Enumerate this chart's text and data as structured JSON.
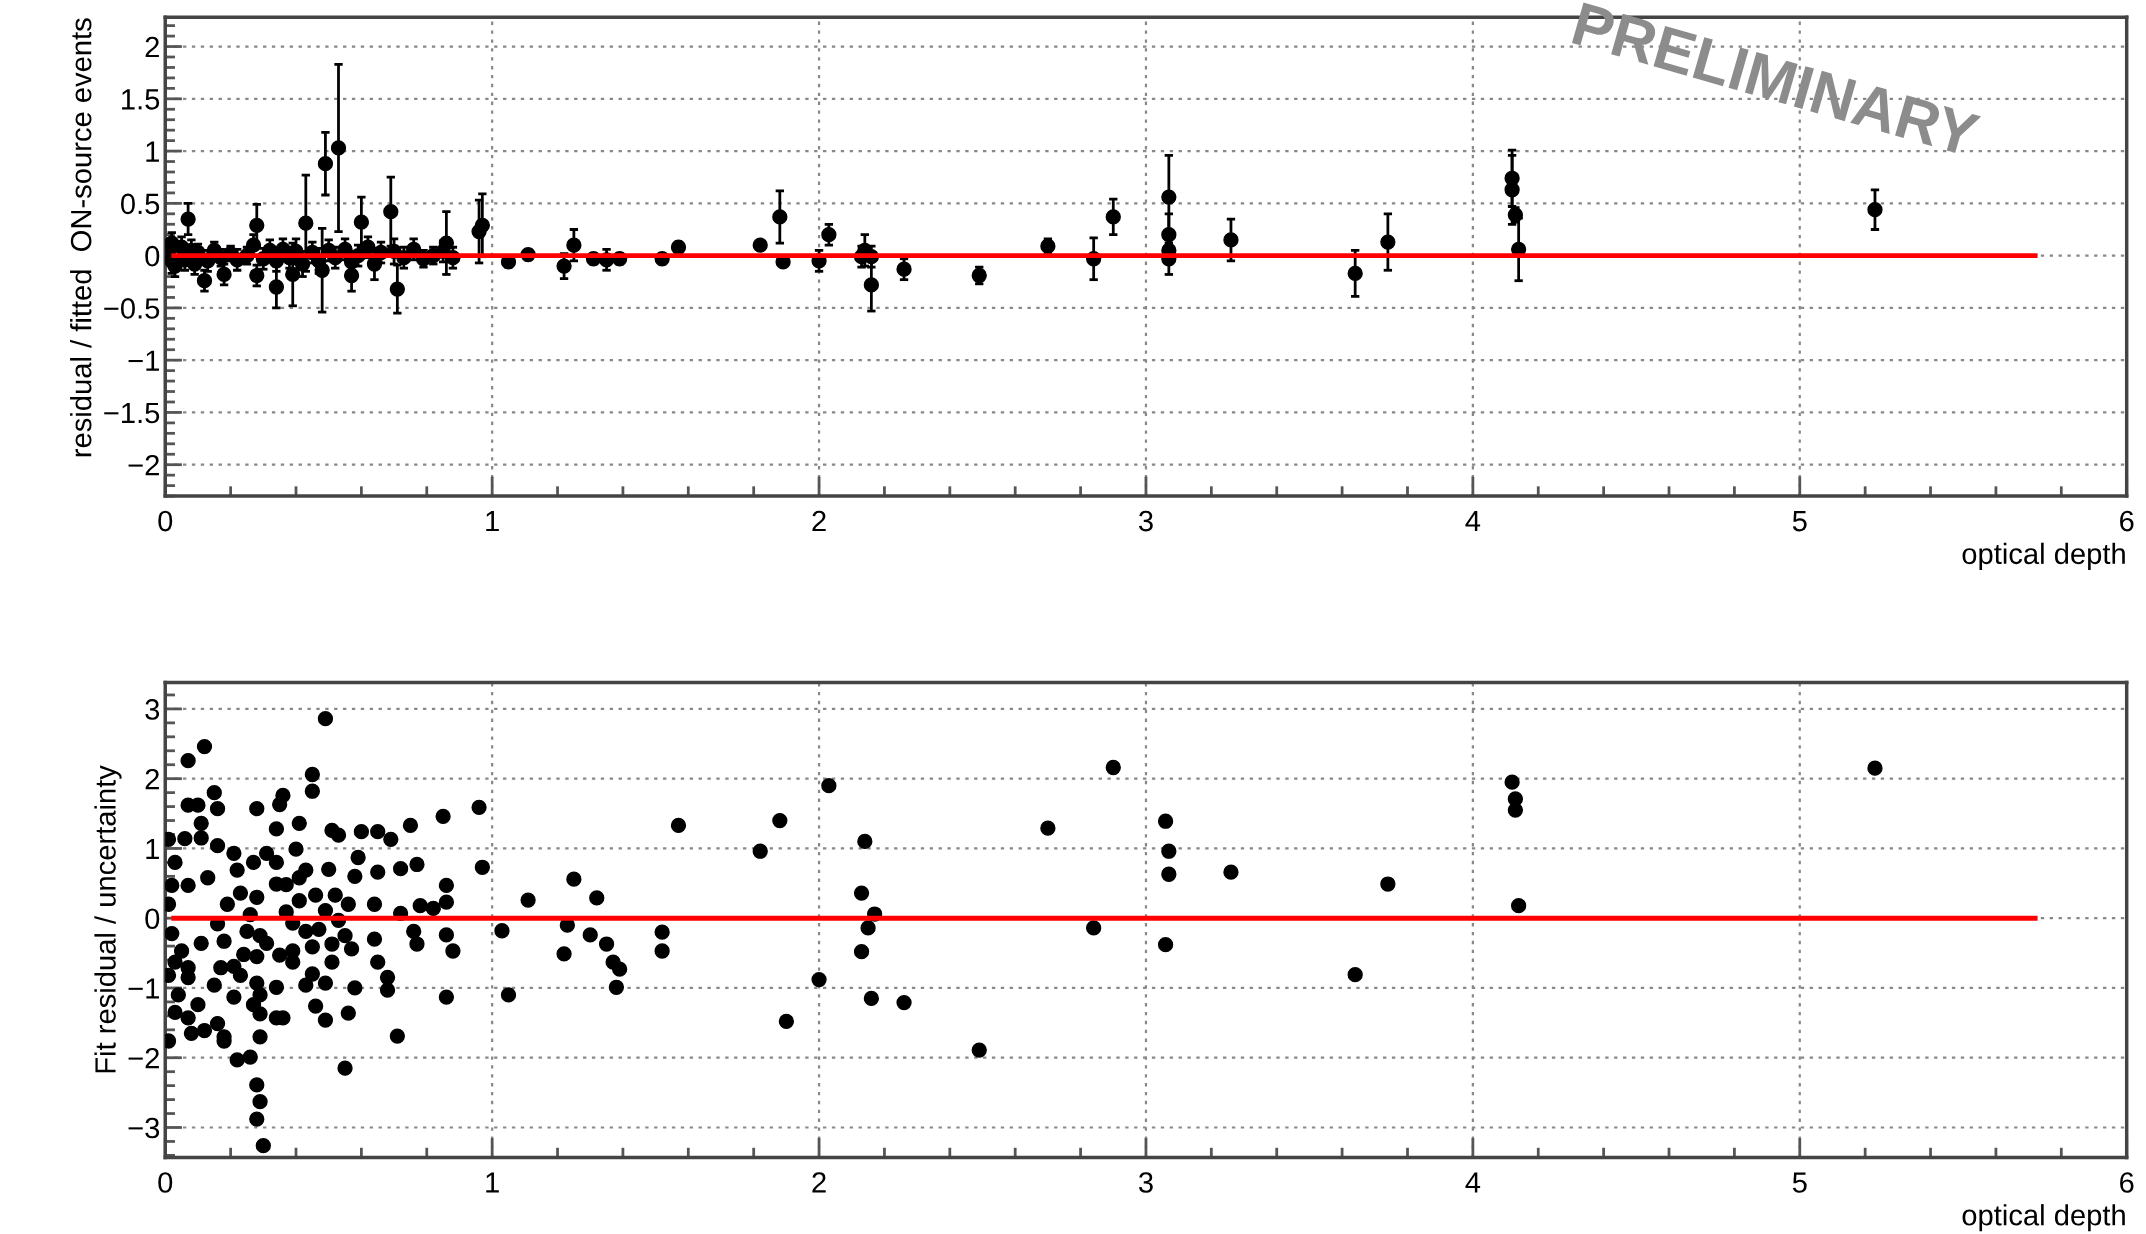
{
  "chart_data": [
    {
      "type": "scatter",
      "xlabel": "optical depth",
      "ylabel": "residual / fitted  ON-source events",
      "xlim": [
        0,
        6
      ],
      "ylim": [
        -2.3,
        2.28
      ],
      "xticks": [
        0,
        1,
        2,
        3,
        4,
        5,
        6
      ],
      "yticks": [
        {
          "value": -2,
          "label": "−2"
        },
        {
          "value": -1.5,
          "label": "−1.5"
        },
        {
          "value": -1,
          "label": "−1"
        },
        {
          "value": -0.5,
          "label": "−0.5"
        },
        0,
        0.5,
        1,
        1.5,
        2
      ],
      "grid": true,
      "annotations": [
        "PRELIMINARY"
      ],
      "series": [
        {
          "marker": "circle",
          "color": "#000000",
          "x": [
            0.01,
            0.02,
            0.02,
            0.03,
            0.05,
            0.06,
            0.08,
            0.09,
            0.1,
            0.13,
            0.15,
            0.17,
            0.2,
            0.22,
            0.25,
            0.27,
            0.3,
            0.32,
            0.34,
            0.36,
            0.38,
            0.4,
            0.42,
            0.45,
            0.47,
            0.5,
            0.52,
            0.55,
            0.57,
            0.59,
            0.62,
            0.64,
            0.66,
            0.7,
            0.73,
            0.76,
            0.79,
            0.82,
            0.85,
            0.88,
            0.07,
            0.28,
            0.43,
            0.49,
            0.53,
            0.6,
            0.69,
            0.71,
            0.34,
            0.39,
            0.48,
            0.12,
            0.18,
            0.28,
            0.57,
            0.96,
            0.97,
            0.86,
            1.05,
            1.11,
            1.25,
            1.22,
            1.31,
            1.35,
            1.39,
            1.52,
            1.57,
            1.82,
            1.88,
            1.89,
            2.0,
            2.03,
            2.13,
            2.14,
            2.16,
            2.16,
            2.26,
            2.49,
            2.7,
            2.84,
            2.9,
            3.07,
            3.07,
            3.07,
            3.07,
            3.26,
            3.64,
            3.74,
            4.12,
            4.12,
            4.13,
            4.14,
            5.23
          ],
          "values": [
            0.05,
            -0.05,
            0.12,
            -0.1,
            0.08,
            -0.04,
            0.05,
            -0.08,
            0.03,
            -0.05,
            0.05,
            -0.02,
            0.02,
            -0.04,
            0.0,
            0.1,
            -0.03,
            0.05,
            -0.05,
            0.06,
            -0.02,
            0.04,
            -0.08,
            0.03,
            -0.05,
            0.05,
            -0.02,
            0.06,
            -0.06,
            0.0,
            0.08,
            -0.08,
            0.03,
            0.04,
            -0.02,
            0.06,
            -0.03,
            0.0,
            0.04,
            -0.02,
            0.35,
            0.29,
            0.31,
            0.88,
            1.03,
            0.32,
            0.42,
            -0.32,
            -0.3,
            -0.18,
            -0.14,
            -0.24,
            -0.18,
            -0.19,
            -0.19,
            0.23,
            0.29,
            0.12,
            -0.06,
            0.01,
            0.1,
            -0.1,
            -0.03,
            -0.04,
            -0.03,
            -0.03,
            0.08,
            0.1,
            0.37,
            -0.06,
            -0.05,
            0.2,
            -0.01,
            0.05,
            -0.01,
            -0.28,
            -0.13,
            -0.19,
            0.09,
            -0.03,
            0.37,
            0.56,
            0.2,
            0.05,
            -0.03,
            0.15,
            -0.17,
            0.13,
            0.74,
            0.63,
            0.39,
            0.06,
            0.44
          ],
          "errors": [
            0.1,
            0.12,
            0.1,
            0.1,
            0.1,
            0.1,
            0.1,
            0.1,
            0.08,
            0.1,
            0.08,
            0.08,
            0.07,
            0.1,
            0.08,
            0.1,
            0.1,
            0.1,
            0.1,
            0.1,
            0.1,
            0.12,
            0.12,
            0.1,
            0.12,
            0.1,
            0.1,
            0.1,
            0.1,
            0.1,
            0.1,
            0.15,
            0.1,
            0.12,
            0.1,
            0.1,
            0.08,
            0.08,
            0.1,
            0.1,
            0.15,
            0.2,
            0.46,
            0.3,
            0.8,
            0.24,
            0.33,
            0.23,
            0.2,
            0.3,
            0.4,
            0.1,
            0.1,
            0.1,
            0.15,
            0.3,
            0.3,
            0.3,
            0.05,
            0.05,
            0.15,
            0.12,
            0.05,
            0.1,
            0.05,
            0.05,
            0.05,
            0.03,
            0.25,
            0.03,
            0.1,
            0.1,
            0.1,
            0.15,
            0.1,
            0.25,
            0.1,
            0.08,
            0.07,
            0.2,
            0.17,
            0.4,
            0.2,
            0.1,
            0.15,
            0.2,
            0.22,
            0.27,
            0.27,
            0.33,
            0.07,
            0.3,
            0.19
          ]
        },
        {
          "type": "line",
          "color": "#ff0000",
          "x": [
            0.026,
            5.72
          ],
          "values": [
            0,
            0
          ]
        }
      ]
    },
    {
      "type": "scatter",
      "xlabel": "optical depth",
      "ylabel": "Fit residual / uncertainty",
      "xlim": [
        0,
        6
      ],
      "ylim": [
        -3.43,
        3.38
      ],
      "xticks": [
        0,
        1,
        2,
        3,
        4,
        5,
        6
      ],
      "yticks": [
        {
          "value": -3,
          "label": "−3"
        },
        {
          "value": -2,
          "label": "−2"
        },
        {
          "value": -1,
          "label": "−1"
        },
        0,
        1,
        2,
        3
      ],
      "grid": true,
      "series": [
        {
          "marker": "circle",
          "color": "#000000",
          "x": [
            0.49,
            0.12,
            0.07,
            0.45,
            0.45,
            0.15,
            0.07,
            0.1,
            0.16,
            0.28,
            0.36,
            0.35,
            0.96,
            0.85,
            0.11,
            0.41,
            0.75,
            1.57,
            0.34,
            0.51,
            0.53,
            0.6,
            0.65,
            0.69,
            0.01,
            0.06,
            0.11,
            0.16,
            0.21,
            0.31,
            0.4,
            0.59,
            0.34,
            0.27,
            0.03,
            0.77,
            0.72,
            0.97,
            1.25,
            0.5,
            0.58,
            0.65,
            0.43,
            0.41,
            0.22,
            0.13,
            0.02,
            0.07,
            0.34,
            0.37,
            0.86,
            1.32,
            1.11,
            0.28,
            0.46,
            0.52,
            0.23,
            0.56,
            0.64,
            0.86,
            0.78,
            0.82,
            0.19,
            0.01,
            0.41,
            0.37,
            0.49,
            0.72,
            0.26,
            0.53,
            0.16,
            0.39,
            1.03,
            1.23,
            1.3,
            1.52,
            0.86,
            0.76,
            0.43,
            0.47,
            0.25,
            0.02,
            0.11,
            0.18,
            0.55,
            0.77,
            1.35,
            1.52,
            1.22,
            0.88,
            0.64,
            0.51,
            0.45,
            0.57,
            0.31,
            0.29,
            0.24,
            0.39,
            0.35,
            0.05,
            0.03,
            0.07,
            0.17,
            0.21,
            1.37,
            1.39,
            0.65,
            0.51,
            0.39,
            0.28,
            0.01,
            0.07,
            0.23,
            1.38,
            0.68,
            0.45,
            0.43,
            0.49,
            0.58,
            0.68,
            0.34,
            0.28,
            0.15,
            0.21,
            0.29,
            0.86,
            1.05,
            0.04,
            0.1,
            0.03,
            0.07,
            0.27,
            0.29,
            0.34,
            0.36,
            0.46,
            0.49,
            0.56,
            0.08,
            0.12,
            0.16,
            0.18,
            0.18,
            0.01,
            0.29,
            0.71,
            0.22,
            0.26,
            0.55,
            0.28,
            0.29,
            0.28,
            0.3,
            1.82,
            1.88,
            1.9,
            2.0,
            2.03,
            2.14,
            2.13,
            2.17,
            2.15,
            2.13,
            2.16,
            2.26,
            2.49,
            2.7,
            2.84,
            2.9,
            3.06,
            3.07,
            3.07,
            3.06,
            3.26,
            3.64,
            3.74,
            4.12,
            4.13,
            4.13,
            4.14,
            5.23
          ],
          "values": [
            2.86,
            2.46,
            2.26,
            2.06,
            1.82,
            1.8,
            1.62,
            1.62,
            1.57,
            1.57,
            1.76,
            1.63,
            1.59,
            1.46,
            1.36,
            1.36,
            1.33,
            1.33,
            1.28,
            1.26,
            1.19,
            1.24,
            1.24,
            1.13,
            1.13,
            1.14,
            1.15,
            1.04,
            0.93,
            0.93,
            0.99,
            0.87,
            0.8,
            0.8,
            0.8,
            0.77,
            0.71,
            0.73,
            0.56,
            0.7,
            0.6,
            0.66,
            0.69,
            0.58,
            0.69,
            0.58,
            0.47,
            0.47,
            0.49,
            0.48,
            0.47,
            0.29,
            0.26,
            0.3,
            0.33,
            0.33,
            0.36,
            0.2,
            0.2,
            0.23,
            0.18,
            0.14,
            0.2,
            0.2,
            0.25,
            0.09,
            0.11,
            0.07,
            0.05,
            -0.03,
            -0.08,
            -0.07,
            -0.18,
            -0.1,
            -0.24,
            -0.2,
            -0.24,
            -0.19,
            -0.19,
            -0.16,
            -0.19,
            -0.22,
            -0.36,
            -0.33,
            -0.25,
            -0.37,
            -0.37,
            -0.47,
            -0.51,
            -0.47,
            -0.3,
            -0.37,
            -0.41,
            -0.44,
            -0.36,
            -0.25,
            -0.52,
            -0.47,
            -0.53,
            -0.47,
            -0.63,
            -0.71,
            -0.71,
            -0.69,
            -0.63,
            -0.73,
            -0.63,
            -0.63,
            -0.63,
            -0.55,
            -0.82,
            -0.85,
            -0.82,
            -0.99,
            -0.85,
            -0.8,
            -0.96,
            -0.93,
            -1.0,
            -1.03,
            -0.99,
            -0.93,
            -0.96,
            -1.13,
            -1.1,
            -1.13,
            -1.1,
            -1.1,
            -1.24,
            -1.35,
            -1.43,
            -1.24,
            -1.37,
            -1.43,
            -1.43,
            -1.26,
            -1.46,
            -1.36,
            -1.65,
            -1.61,
            -1.51,
            -1.7,
            -1.76,
            -1.76,
            -1.7,
            -1.69,
            -2.03,
            -1.99,
            -2.15,
            -2.39,
            -2.63,
            -2.88,
            -3.26,
            0.96,
            1.4,
            -1.48,
            -0.88,
            1.9,
            1.1,
            0.36,
            0.06,
            -0.14,
            -0.48,
            -1.15,
            -1.21,
            -1.89,
            1.29,
            -0.14,
            2.16,
            1.39,
            0.96,
            0.63,
            -0.38,
            0.66,
            -0.81,
            0.49,
            1.95,
            1.71,
            1.55,
            0.18,
            2.15
          ]
        },
        {
          "type": "line",
          "color": "#ff0000",
          "x": [
            0.026,
            5.72
          ],
          "values": [
            0,
            0
          ]
        }
      ]
    }
  ]
}
